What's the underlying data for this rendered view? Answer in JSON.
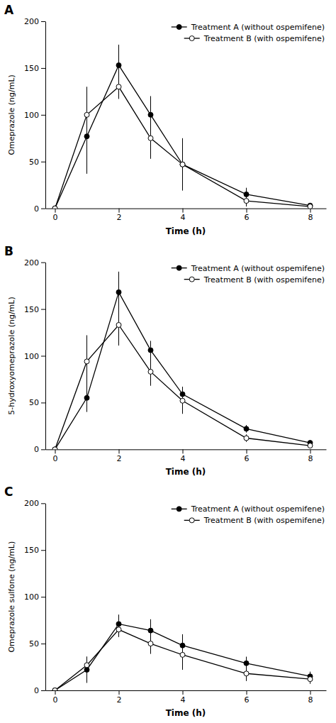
{
  "chart_data": [
    {
      "type": "line",
      "annotations": [
        "A"
      ],
      "xlabel": "Time (h)",
      "ylabel": "Omeprazole (ng/mL)",
      "x": [
        0,
        1,
        2,
        3,
        4,
        6,
        8
      ],
      "series": [
        {
          "name": "Treatment A (without ospemifene)",
          "color": "#000000",
          "marker": "circle",
          "values": [
            0,
            77,
            153,
            100,
            47,
            15,
            3
          ],
          "errors": [
            0,
            40,
            22,
            20,
            25,
            7,
            2
          ]
        },
        {
          "name": "Treatment B (with ospemifene)",
          "color": "#000000",
          "marker": "open-circle",
          "values": [
            0,
            100,
            130,
            75,
            47,
            8,
            2
          ],
          "errors": [
            0,
            30,
            13,
            22,
            28,
            6,
            1.5
          ]
        }
      ],
      "xlim": [
        -0.3,
        8.5
      ],
      "ylim": [
        0,
        200
      ],
      "xticks": [
        0,
        2,
        4,
        6,
        8
      ],
      "yticks": [
        0,
        50,
        100,
        150,
        200
      ],
      "grid": false,
      "legend": "upper right"
    },
    {
      "type": "line",
      "annotations": [
        "B"
      ],
      "xlabel": "Time (h)",
      "ylabel": "5-hydroxyomeprazole (ng/mL)",
      "x": [
        0,
        1,
        2,
        3,
        4,
        6,
        8
      ],
      "series": [
        {
          "name": "Treatment A (without ospemifene)",
          "color": "#000000",
          "marker": "circle",
          "values": [
            0,
            55,
            168,
            106,
            59,
            22,
            7
          ],
          "errors": [
            0,
            15,
            22,
            10,
            8,
            4,
            2
          ]
        },
        {
          "name": "Treatment B (with ospemifene)",
          "color": "#000000",
          "marker": "open-circle",
          "values": [
            0,
            94,
            133,
            83,
            52,
            12,
            4
          ],
          "errors": [
            0,
            28,
            22,
            15,
            14,
            4,
            2
          ]
        }
      ],
      "xlim": [
        -0.3,
        8.5
      ],
      "ylim": [
        0,
        200
      ],
      "xticks": [
        0,
        2,
        4,
        6,
        8
      ],
      "yticks": [
        0,
        50,
        100,
        150,
        200
      ],
      "grid": false,
      "legend": "upper right"
    },
    {
      "type": "line",
      "annotations": [
        "C"
      ],
      "xlabel": "Time (h)",
      "ylabel": "Omeprazole sulfone (ng/mL)",
      "x": [
        0,
        1,
        2,
        3,
        4,
        6,
        8
      ],
      "series": [
        {
          "name": "Treatment A (without ospemifene)",
          "color": "#000000",
          "marker": "circle",
          "values": [
            0,
            22,
            71,
            64,
            48,
            29,
            15
          ],
          "errors": [
            0,
            14,
            10,
            12,
            12,
            7,
            5
          ]
        },
        {
          "name": "Treatment B (with ospemifene)",
          "color": "#000000",
          "marker": "open-circle",
          "values": [
            0,
            27,
            65,
            50,
            38,
            18,
            12
          ],
          "errors": [
            0,
            9,
            8,
            11,
            16,
            8,
            5
          ]
        }
      ],
      "xlim": [
        -0.3,
        8.5
      ],
      "ylim": [
        0,
        200
      ],
      "xticks": [
        0,
        2,
        4,
        6,
        8
      ],
      "yticks": [
        0,
        50,
        100,
        150,
        200
      ],
      "grid": false,
      "legend": "upper right"
    }
  ]
}
